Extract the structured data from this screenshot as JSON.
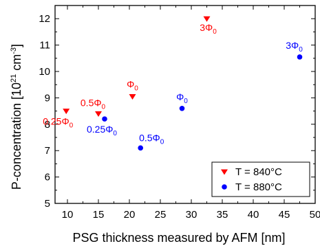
{
  "chart_data": {
    "type": "scatter",
    "title": "",
    "xlabel": "PSG thickness measured by AFM [nm]",
    "ylabel": {
      "base": "P-concentration [10",
      "sup": "21",
      "unit": " cm",
      "sup2": "-3",
      "end": "]"
    },
    "xlim": [
      8,
      50
    ],
    "ylim": [
      5,
      12.5
    ],
    "xticks": [
      "10",
      "15",
      "20",
      "25",
      "30",
      "35",
      "40",
      "45",
      "50"
    ],
    "yticks": [
      "5",
      "6",
      "7",
      "8",
      "9",
      "10",
      "11",
      "12"
    ],
    "grid": false,
    "legend_position": "bottom-right",
    "series": [
      {
        "name": "T = 840°C",
        "marker": "triangle-down",
        "color": "#ff0000",
        "points": [
          {
            "x": 9.8,
            "y": 8.5,
            "label": "0.25Φ",
            "sub": "0"
          },
          {
            "x": 15.0,
            "y": 8.4,
            "label": "0.5Φ",
            "sub": "0"
          },
          {
            "x": 20.5,
            "y": 9.05,
            "label": "Φ",
            "sub": "0"
          },
          {
            "x": 32.5,
            "y": 12.0,
            "label": "3Φ",
            "sub": "0"
          }
        ]
      },
      {
        "name": "T = 880°C",
        "marker": "circle",
        "color": "#0000ff",
        "points": [
          {
            "x": 16.0,
            "y": 8.2,
            "label": "0.25Φ",
            "sub": "0"
          },
          {
            "x": 21.8,
            "y": 7.1,
            "label": "0.5Φ",
            "sub": "0"
          },
          {
            "x": 28.5,
            "y": 8.6,
            "label": "Φ",
            "sub": "0"
          },
          {
            "x": 47.5,
            "y": 10.55,
            "label": "3Φ",
            "sub": "0"
          }
        ]
      }
    ]
  }
}
